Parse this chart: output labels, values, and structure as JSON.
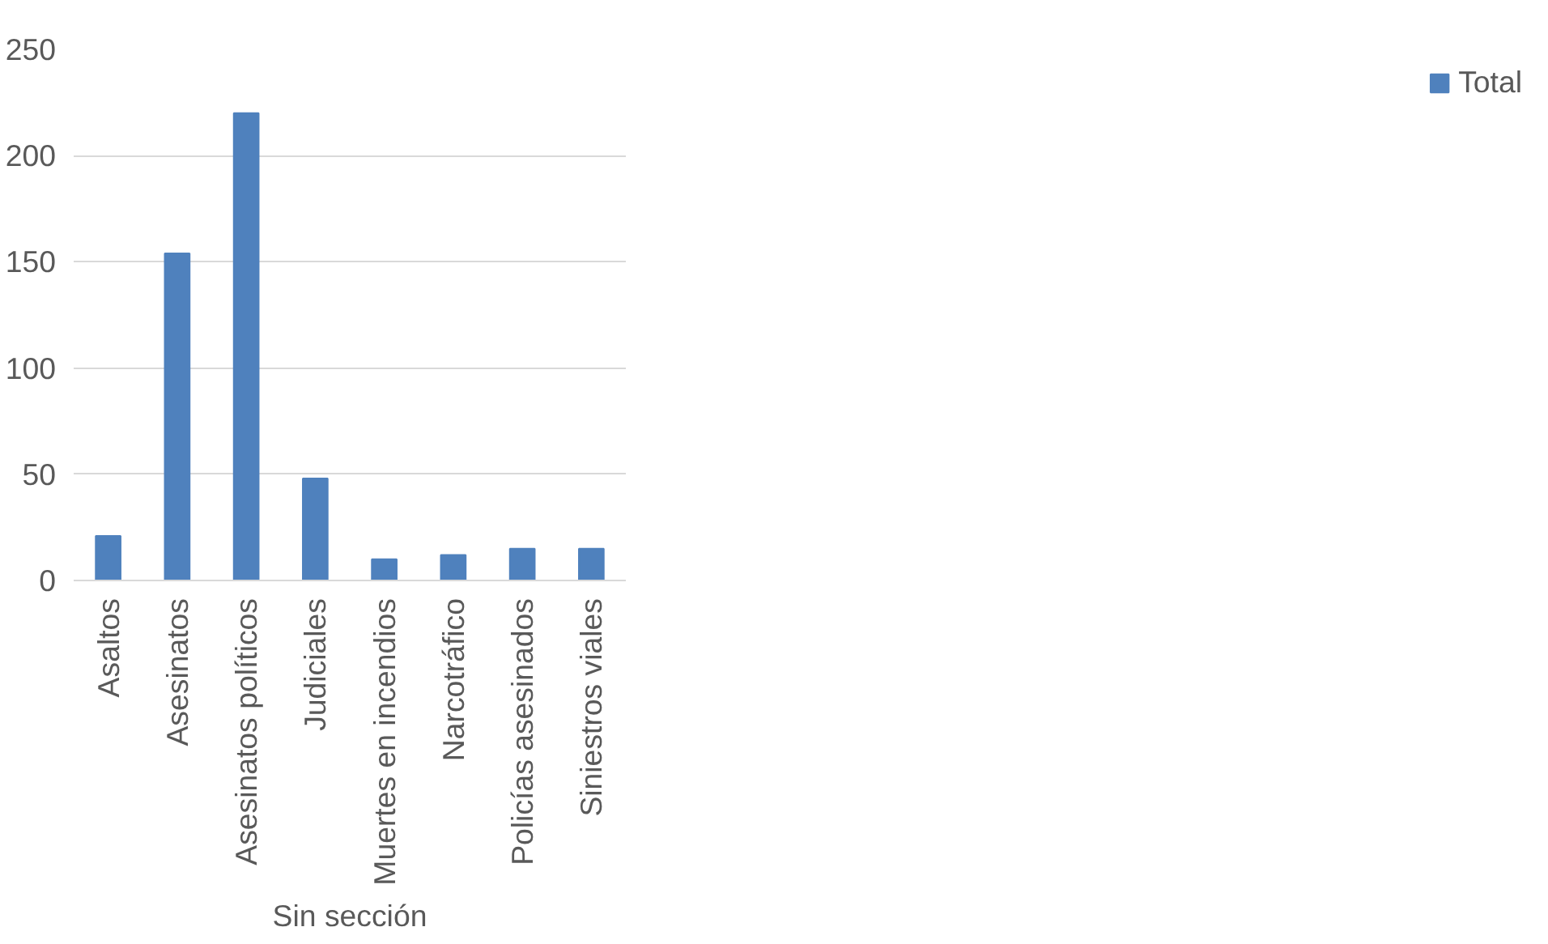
{
  "chart_data": {
    "type": "bar",
    "categories": [
      "Asaltos",
      "Asesinatos",
      "Asesinatos políticos",
      "Judiciales",
      "Muertes en incendios",
      "Narcotráfico",
      "Policías asesinados",
      "Siniestros viales"
    ],
    "series": [
      {
        "name": "Total",
        "color": "#4f81bd",
        "values": [
          21,
          154,
          220,
          48,
          10,
          12,
          15,
          15
        ]
      }
    ],
    "xlabel": "Sin sección",
    "ylim": [
      0,
      250
    ],
    "yticks": [
      0,
      50,
      100,
      150,
      200,
      250
    ],
    "grid": "y",
    "legend": "right"
  }
}
